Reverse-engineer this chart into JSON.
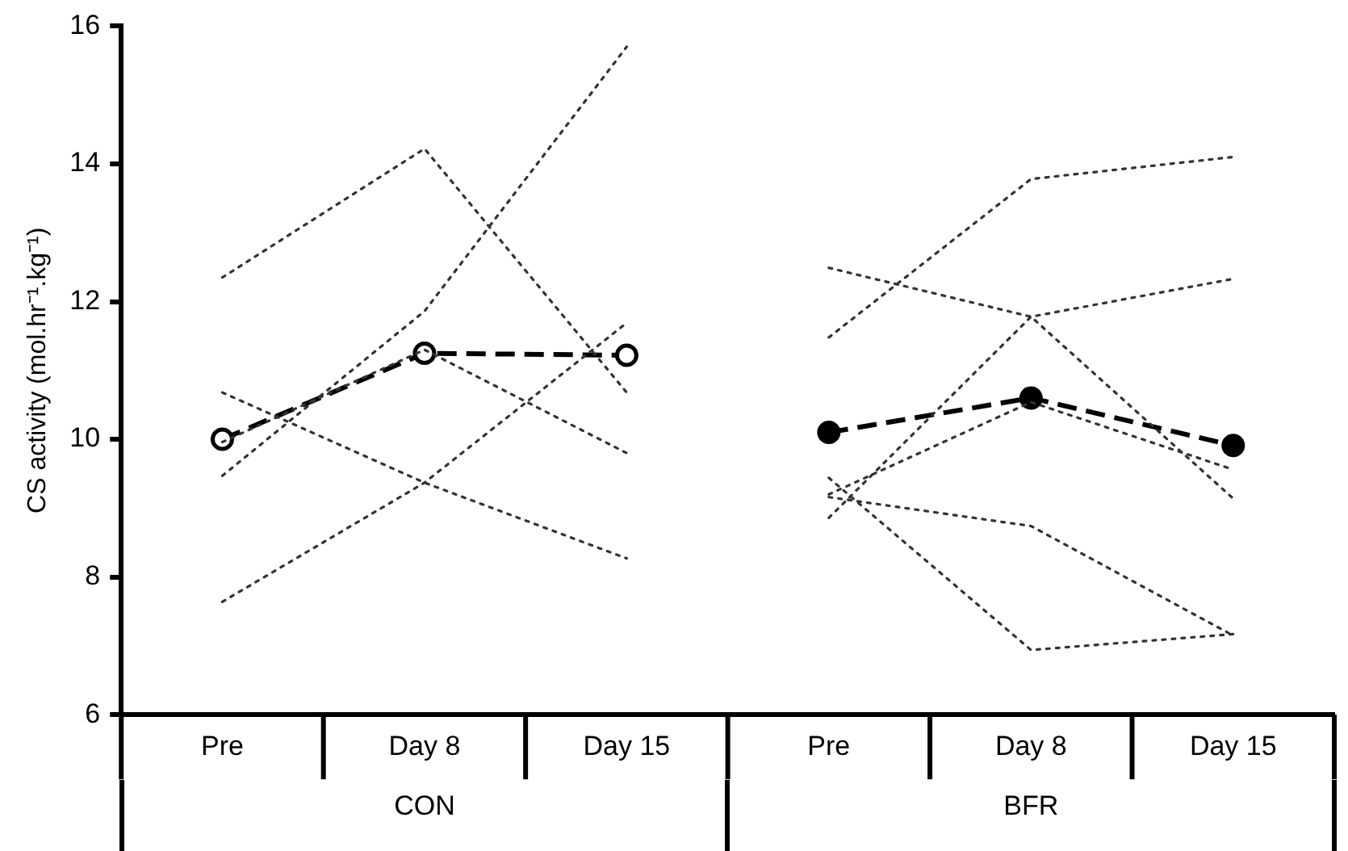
{
  "chart_data": {
    "type": "line",
    "ylabel": "CS activity (mol.hr⁻¹.kg⁻¹)",
    "categories": [
      "Pre",
      "Day 8",
      "Day 15",
      "Pre",
      "Day 8",
      "Day 15"
    ],
    "annotations": [
      "CON",
      "BFR"
    ],
    "ylim": [
      6,
      16
    ],
    "yticks": [
      6,
      8,
      10,
      12,
      14,
      16
    ],
    "grid": false,
    "legend": false,
    "series": [
      {
        "color": "#333333",
        "line_style": "dotted",
        "marker": "none",
        "values": [
          12.35,
          14.22,
          10.68,
          null,
          null,
          null
        ]
      },
      {
        "color": "#333333",
        "line_style": "dotted",
        "marker": "none",
        "values": [
          9.47,
          11.86,
          15.7,
          null,
          null,
          null
        ]
      },
      {
        "color": "#333333",
        "line_style": "dotted",
        "marker": "none",
        "values": [
          7.64,
          9.37,
          11.69,
          null,
          null,
          null
        ]
      },
      {
        "color": "#333333",
        "line_style": "dotted",
        "marker": "none",
        "values": [
          10.68,
          9.37,
          8.27,
          null,
          null,
          null
        ]
      },
      {
        "color": "#333333",
        "line_style": "dotted",
        "marker": "none",
        "values": [
          9.96,
          11.3,
          9.8,
          null,
          null,
          null
        ]
      },
      {
        "color": "#333333",
        "line_style": "dotted",
        "marker": "none",
        "values": [
          null,
          null,
          null,
          11.48,
          13.78,
          14.1
        ]
      },
      {
        "color": "#333333",
        "line_style": "dotted",
        "marker": "none",
        "values": [
          null,
          null,
          null,
          12.49,
          11.78,
          9.14
        ]
      },
      {
        "color": "#333333",
        "line_style": "dotted",
        "marker": "none",
        "values": [
          null,
          null,
          null,
          8.86,
          11.78,
          12.33
        ]
      },
      {
        "color": "#333333",
        "line_style": "dotted",
        "marker": "none",
        "values": [
          null,
          null,
          null,
          9.2,
          10.54,
          9.56
        ]
      },
      {
        "color": "#333333",
        "line_style": "dotted",
        "marker": "none",
        "values": [
          null,
          null,
          null,
          9.44,
          6.94,
          7.17
        ]
      },
      {
        "color": "#333333",
        "line_style": "dotted",
        "marker": "none",
        "values": [
          null,
          null,
          null,
          9.16,
          8.74,
          7.15
        ]
      },
      {
        "color": "#000000",
        "line_style": "dashed",
        "marker": "circle",
        "values": [
          10.0,
          11.25,
          11.22,
          null,
          null,
          null
        ]
      },
      {
        "color": "#000000",
        "line_style": "dashed",
        "marker": "circle",
        "values": [
          null,
          null,
          null,
          10.1,
          10.6,
          9.91
        ]
      }
    ]
  }
}
